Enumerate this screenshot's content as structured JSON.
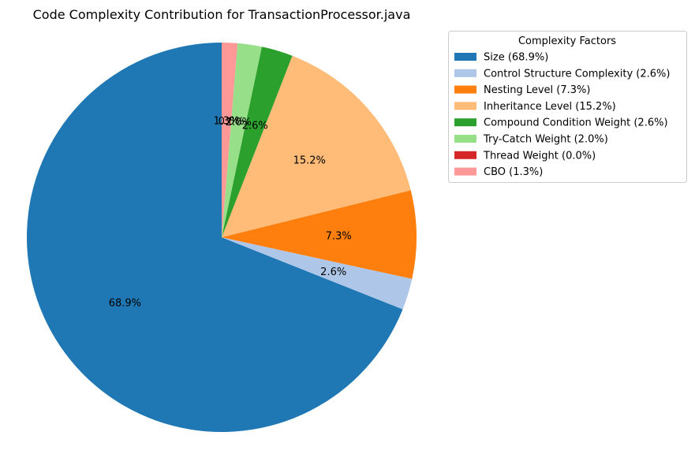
{
  "chart_data": {
    "type": "pie",
    "title": "Code Complexity Contribution for TransactionProcessor.java",
    "start_angle_deg": 90,
    "direction": "counterclockwise",
    "legend": {
      "title": "Complexity Factors",
      "placement": "upper-right-outside"
    },
    "slices": [
      {
        "label": "Size",
        "value": 68.9,
        "pct_text": "68.9%",
        "legend_text": "Size (68.9%)",
        "color": "#1f77b4"
      },
      {
        "label": "Control Structure Complexity",
        "value": 2.6,
        "pct_text": "2.6%",
        "legend_text": "Control Structure Complexity (2.6%)",
        "color": "#aec7e8"
      },
      {
        "label": "Nesting Level",
        "value": 7.3,
        "pct_text": "7.3%",
        "legend_text": "Nesting Level (7.3%)",
        "color": "#ff7f0e"
      },
      {
        "label": "Inheritance Level",
        "value": 15.2,
        "pct_text": "15.2%",
        "legend_text": "Inheritance Level (15.2%)",
        "color": "#ffbb78"
      },
      {
        "label": "Compound Condition Weight",
        "value": 2.6,
        "pct_text": "2.6%",
        "legend_text": "Compound Condition Weight (2.6%)",
        "color": "#2ca02c"
      },
      {
        "label": "Try-Catch Weight",
        "value": 2.0,
        "pct_text": "2.0%",
        "legend_text": "Try-Catch Weight (2.0%)",
        "color": "#98df8a"
      },
      {
        "label": "Thread Weight",
        "value": 0.0,
        "pct_text": "0.0%",
        "legend_text": "Thread Weight (0.0%)",
        "color": "#d62728"
      },
      {
        "label": "CBO",
        "value": 1.3,
        "pct_text": "1.3%",
        "legend_text": "CBO (1.3%)",
        "color": "#ff9896"
      }
    ]
  }
}
